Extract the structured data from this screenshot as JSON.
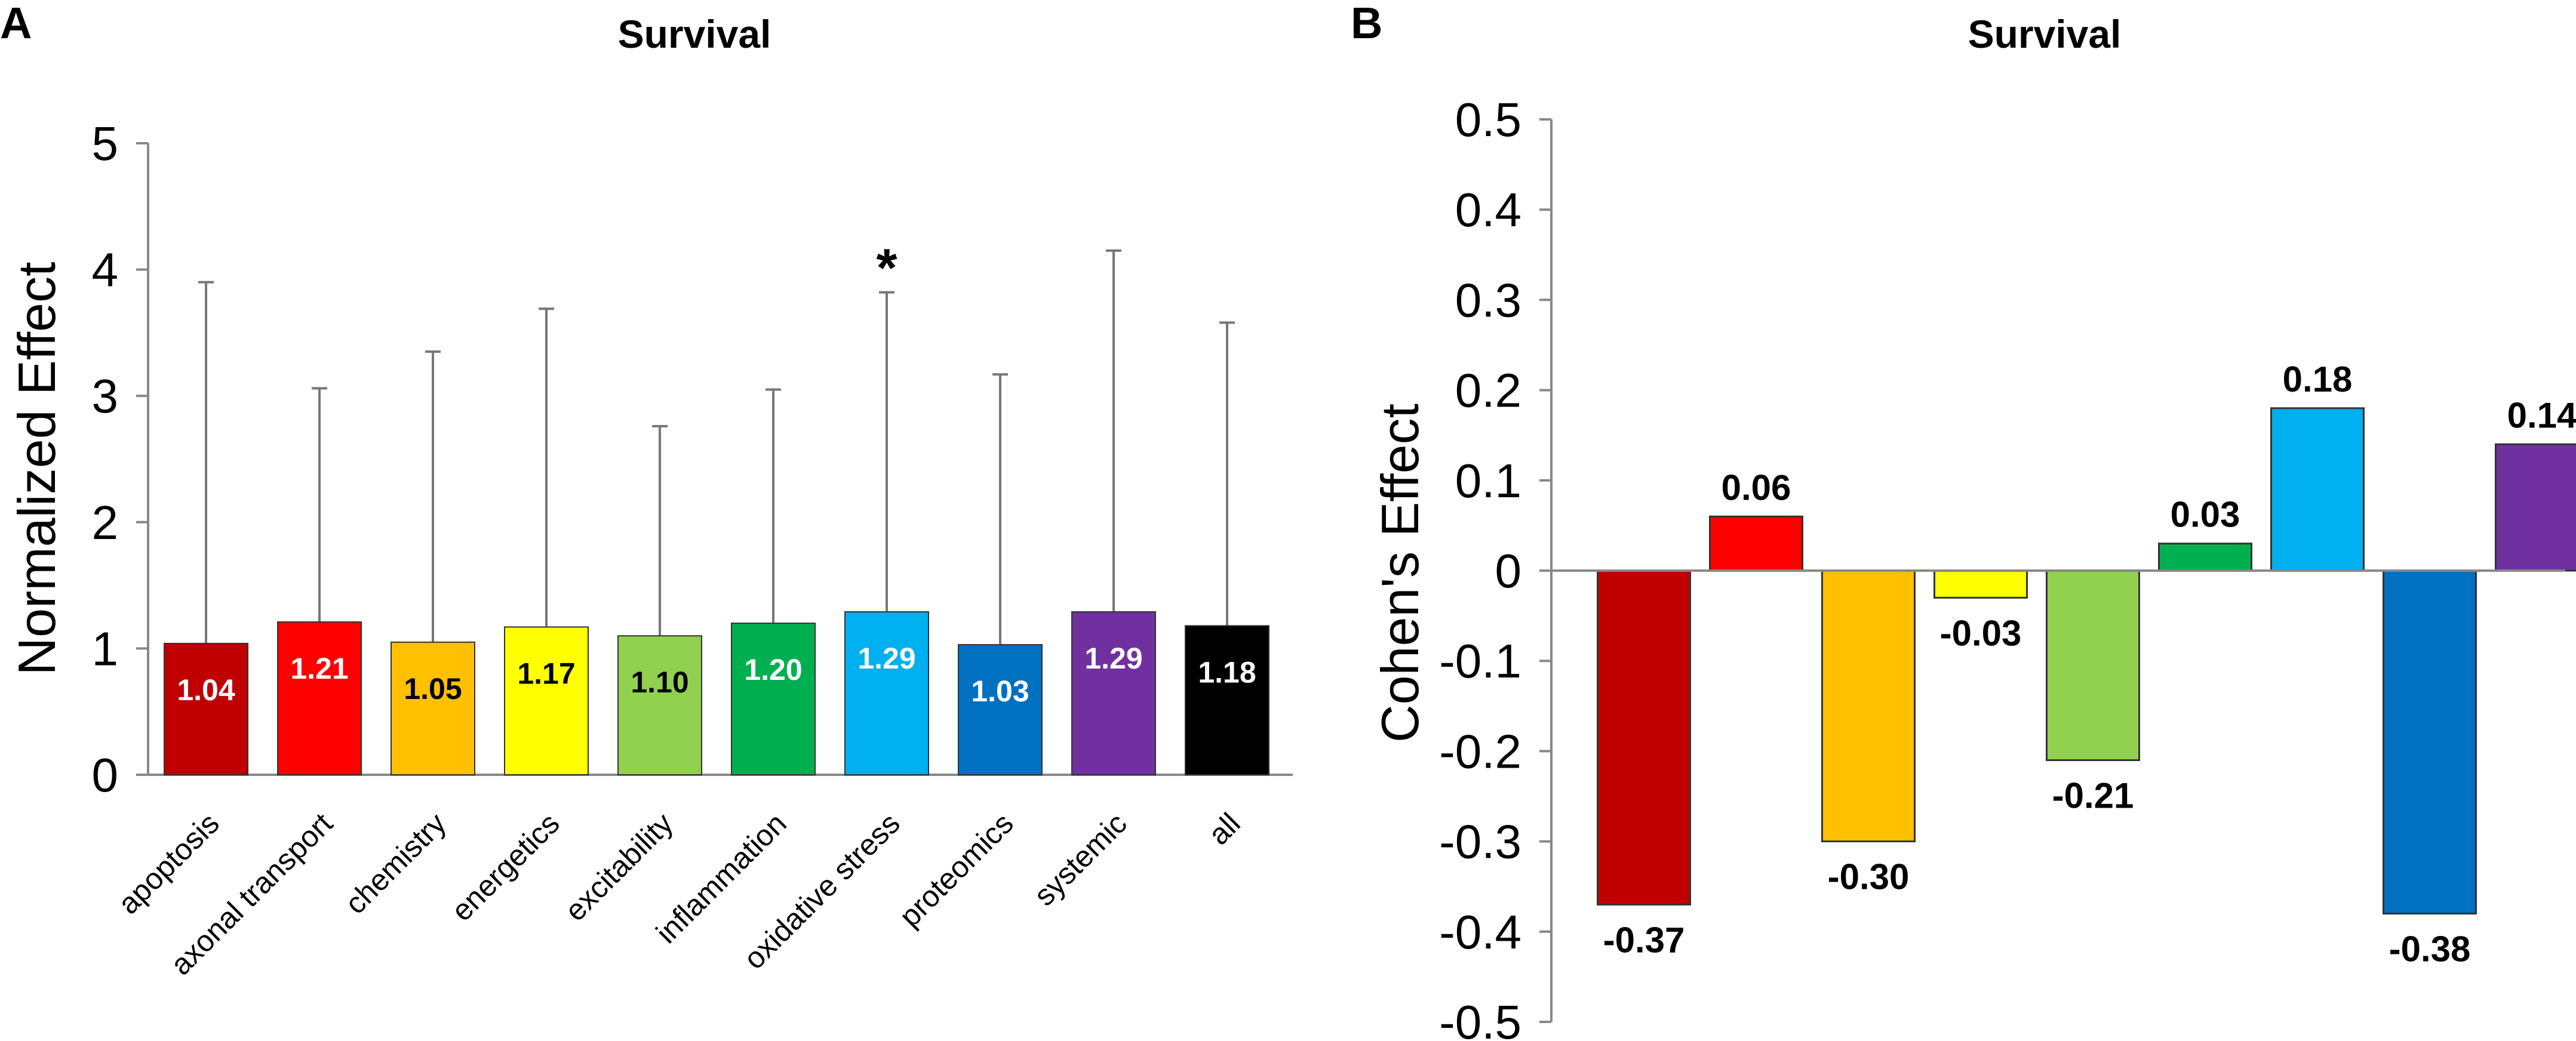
{
  "chart_data": [
    {
      "panel": "A",
      "type": "bar",
      "title": "Survival",
      "xlabel": "",
      "ylabel": "Normalized Effect",
      "ylim": [
        0,
        5
      ],
      "yticks": [
        "0",
        "1",
        "2",
        "3",
        "4",
        "5"
      ],
      "categories": [
        "apoptosis",
        "axonal transport",
        "chemistry",
        "energetics",
        "excitability",
        "inflammation",
        "oxidative stress",
        "proteomics",
        "systemic",
        "all"
      ],
      "values": [
        1.04,
        1.21,
        1.05,
        1.17,
        1.1,
        1.2,
        1.29,
        1.03,
        1.29,
        1.18
      ],
      "value_labels": [
        "1.04",
        "1.21",
        "1.05",
        "1.17",
        "1.10",
        "1.20",
        "1.29",
        "1.03",
        "1.29",
        "1.18"
      ],
      "error_upper": [
        3.9,
        3.06,
        3.35,
        3.69,
        2.76,
        3.05,
        3.82,
        3.17,
        4.15,
        3.58
      ],
      "colors": [
        "#c00000",
        "#ff0000",
        "#ffc000",
        "#ffff00",
        "#92d050",
        "#00b050",
        "#00b0f0",
        "#0070c0",
        "#7030a0",
        "#000000"
      ],
      "label_colors": [
        "#ffffff",
        "#ffffff",
        "#000000",
        "#000000",
        "#000000",
        "#ffffff",
        "#ffffff",
        "#ffffff",
        "#ffffff",
        "#ffffff"
      ],
      "annotations": [
        {
          "category": "oxidative stress",
          "text": "*"
        }
      ]
    },
    {
      "panel": "B",
      "type": "bar",
      "title": "Survival",
      "xlabel": "",
      "ylabel": "Cohen's Effect",
      "ylim": [
        -0.5,
        0.5
      ],
      "yticks": [
        "-0.5",
        "-0.4",
        "-0.3",
        "-0.2",
        "-0.1",
        "0",
        "0.1",
        "0.2",
        "0.3",
        "0.4",
        "0.5"
      ],
      "values": [
        -0.37,
        0.06,
        -0.3,
        -0.03,
        -0.21,
        0.03,
        0.18,
        -0.38,
        0.14
      ],
      "value_labels": [
        "-0.37",
        "0.06",
        "-0.30",
        "-0.03",
        "-0.21",
        "0.03",
        "0.18",
        "-0.38",
        "0.14"
      ],
      "colors": [
        "#c00000",
        "#ff0000",
        "#ffc000",
        "#ffff00",
        "#92d050",
        "#00b050",
        "#00b0f0",
        "#0070c0",
        "#7030a0"
      ]
    }
  ]
}
